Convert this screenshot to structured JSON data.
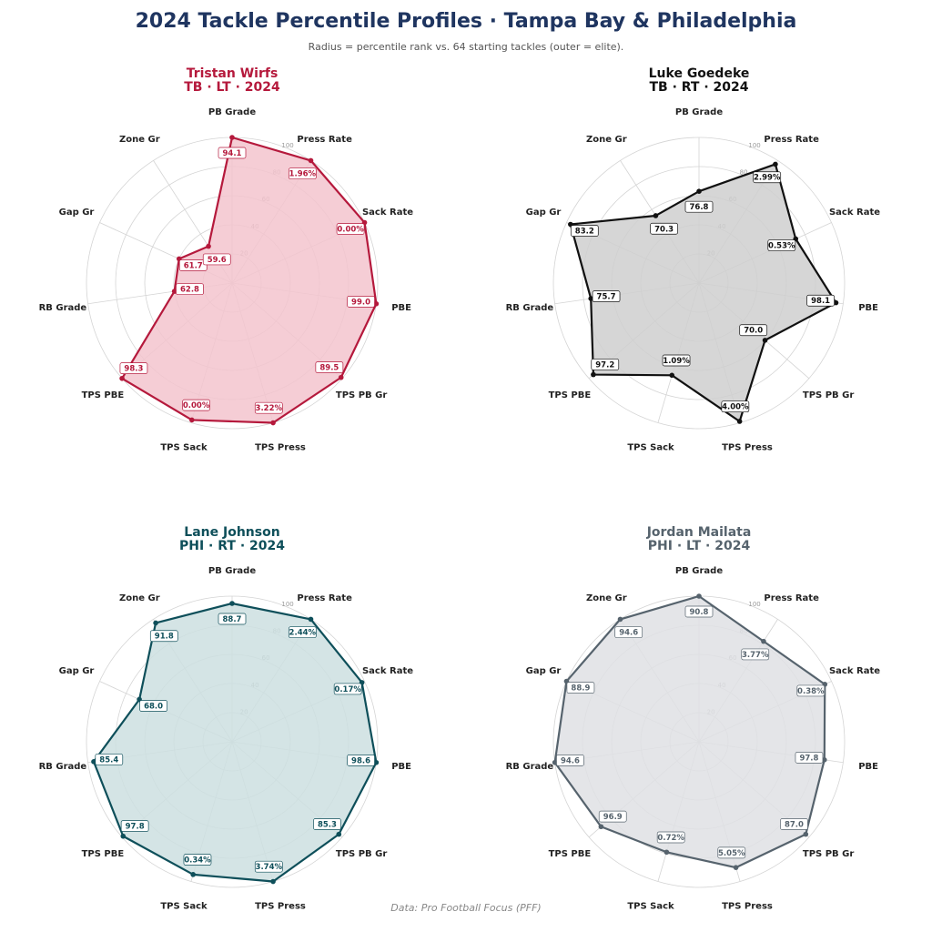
{
  "title": "2024 Tackle Percentile Profiles  ·  Tampa Bay & Philadelphia",
  "subtitle": "Radius = percentile rank vs. 64 starting tackles (outer = elite).",
  "source": "Data: Pro Football Focus (PFF)",
  "chart_data": [
    {
      "type": "radar",
      "title": "Tristan Wirfs",
      "subtitle": "TB · LT · 2024",
      "color": "#b5193c",
      "fill": "#f3c4ce",
      "categories": [
        "PB Grade",
        "Press Rate",
        "Sack Rate",
        "PBE",
        "TPS PB Gr",
        "TPS Press",
        "TPS Sack",
        "TPS PBE",
        "RB Grade",
        "Gap Gr",
        "Zone Gr"
      ],
      "values": [
        100,
        100,
        100,
        100,
        99,
        100,
        98,
        100,
        40,
        40,
        30
      ],
      "point_labels": [
        "94.1",
        "1.96%",
        "0.00%",
        "99.0",
        "89.5",
        "3.22%",
        "0.00%",
        "98.3",
        "62.8",
        "61.7",
        "59.6"
      ],
      "rlim": [
        0,
        100
      ],
      "rticks": [
        20,
        40,
        60,
        80,
        100
      ]
    },
    {
      "type": "radar",
      "title": "Luke Goedeke",
      "subtitle": "TB · RT · 2024",
      "color": "#111111",
      "fill": "#cfcfcf",
      "categories": [
        "PB Grade",
        "Press Rate",
        "Sack Rate",
        "PBE",
        "TPS PB Gr",
        "TPS Press",
        "TPS Sack",
        "TPS PBE",
        "RB Grade",
        "Gap Gr",
        "Zone Gr"
      ],
      "values": [
        63,
        97,
        73,
        95,
        60,
        99,
        66,
        96,
        75,
        97,
        55
      ],
      "point_labels": [
        "76.8",
        "2.99%",
        "0.53%",
        "98.1",
        "70.0",
        "4.00%",
        "1.09%",
        "97.2",
        "75.7",
        "83.2",
        "70.3"
      ],
      "rlim": [
        0,
        100
      ],
      "rticks": [
        20,
        40,
        60,
        80,
        100
      ]
    },
    {
      "type": "radar",
      "title": "Lane Johnson",
      "subtitle": "PHI · RT · 2024",
      "color": "#0e4f5a",
      "fill": "#cddfe1",
      "categories": [
        "PB Grade",
        "Press Rate",
        "Sack Rate",
        "PBE",
        "TPS PB Gr",
        "TPS Press",
        "TPS Sack",
        "TPS PBE",
        "RB Grade",
        "Gap Gr",
        "Zone Gr"
      ],
      "values": [
        95,
        100,
        98,
        100,
        97,
        100,
        95,
        99,
        96,
        70,
        97
      ],
      "point_labels": [
        "88.7",
        "2.44%",
        "0.17%",
        "98.6",
        "85.3",
        "3.74%",
        "0.34%",
        "97.8",
        "85.4",
        "68.0",
        "91.8"
      ],
      "rlim": [
        0,
        100
      ],
      "rticks": [
        20,
        40,
        60,
        80,
        100
      ]
    },
    {
      "type": "radar",
      "title": "Jordan Mailata",
      "subtitle": "PHI · LT · 2024",
      "color": "#56636d",
      "fill": "#dfe1e4",
      "categories": [
        "PB Grade",
        "Press Rate",
        "Sack Rate",
        "PBE",
        "TPS PB Gr",
        "TPS Press",
        "TPS Sack",
        "TPS PBE",
        "RB Grade",
        "Gap Gr",
        "Zone Gr"
      ],
      "values": [
        100,
        82,
        95,
        87,
        97,
        90,
        79,
        89,
        100,
        100,
        100
      ],
      "point_labels": [
        "90.8",
        "3.77%",
        "0.38%",
        "97.8",
        "87.0",
        "5.05%",
        "0.72%",
        "96.9",
        "94.6",
        "88.9",
        "94.6"
      ],
      "rlim": [
        0,
        100
      ],
      "rticks": [
        20,
        40,
        60,
        80,
        100
      ]
    }
  ]
}
